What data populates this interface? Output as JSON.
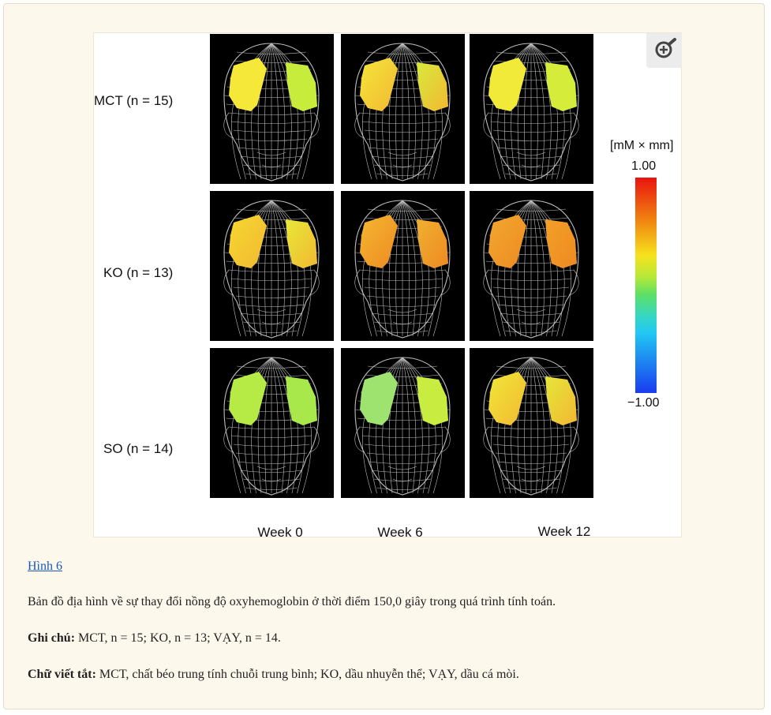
{
  "figure": {
    "rows": [
      "MCT (n = 15)",
      "KO (n = 13)",
      "SO (n = 14)"
    ],
    "columns": [
      "Week 0",
      "Week 6",
      "Week 12"
    ],
    "colorbar": {
      "unit": "[mM × mm]",
      "max": "1.00",
      "min": "−1.00"
    },
    "zoom_icon": "zoom-in-icon",
    "panels": [
      [
        {
          "left": "#f6e838",
          "right": "#c8ec3c",
          "warm": 0.1
        },
        {
          "left": "#f4e63a",
          "right": "#d8ea3c",
          "warm": 0.25
        },
        {
          "left": "#f2ea38",
          "right": "#d6ec3a",
          "warm": 0.15
        }
      ],
      [
        {
          "left": "#f6d830",
          "right": "#e8e838",
          "warm": 0.35
        },
        {
          "left": "#f4b830",
          "right": "#f0b030",
          "warm": 0.55
        },
        {
          "left": "#f2a830",
          "right": "#f2a028",
          "warm": 0.7
        }
      ],
      [
        {
          "left": "#b6ea44",
          "right": "#a8e84a",
          "warm": 0.05
        },
        {
          "left": "#9ee270",
          "right": "#c8ec40",
          "warm": 0.1
        },
        {
          "left": "#f0e838",
          "right": "#e6e63a",
          "warm": 0.2
        }
      ]
    ]
  },
  "caption": {
    "link": "Hình 6",
    "description": "Bản đồ địa hình về sự thay đổi nồng độ oxyhemoglobin ở thời điểm 150,0 giây trong quá trình tính toán.",
    "note_label": "Ghi chú:",
    "note_text": " MCT, n = 15; KO, n = 13; VẠY, n = 14.",
    "abbr_label": "Chữ viết tắt:",
    "abbr_text": " MCT, chất béo trung tính chuỗi trung bình; KO, dầu nhuyễn thể; VẠY, dầu cá mòi."
  }
}
